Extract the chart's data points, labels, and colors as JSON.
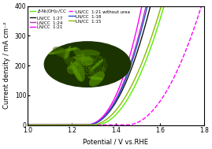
{
  "xlabel": "Potential / V vs.RHE",
  "ylabel": "Current density / mA cm⁻²",
  "xlim": [
    1.0,
    1.8
  ],
  "ylim": [
    0,
    400
  ],
  "xticks": [
    1.0,
    1.2,
    1.4,
    1.6,
    1.8
  ],
  "yticks": [
    0,
    100,
    200,
    300,
    400
  ],
  "curves": [
    {
      "label": "β-Ni(OH)₂/CC",
      "color": "#55ee00",
      "linestyle": "-",
      "onset": 1.31,
      "A": 4200,
      "n": 2.0
    },
    {
      "label": "LN/CC  1:27",
      "color": "#111111",
      "linestyle": "-",
      "onset": 1.27,
      "A": 5500,
      "n": 2.1
    },
    {
      "label": "LN/CC  1:24",
      "color": "#bb33bb",
      "linestyle": "-",
      "onset": 1.265,
      "A": 7000,
      "n": 2.2
    },
    {
      "label": "LN/CC  1:21",
      "color": "#ff00ff",
      "linestyle": "-",
      "onset": 1.26,
      "A": 9000,
      "n": 2.3
    },
    {
      "label": "LN/CC  1:21 without urea",
      "color": "#ff00ff",
      "linestyle": "--",
      "onset": 1.45,
      "A": 3500,
      "n": 2.0
    },
    {
      "label": "LN/CC  1:18",
      "color": "#2255cc",
      "linestyle": "-",
      "onset": 1.27,
      "A": 6500,
      "n": 2.15
    },
    {
      "label": "LN/CC  1:15",
      "color": "#88bb00",
      "linestyle": "-",
      "onset": 1.29,
      "A": 4000,
      "n": 2.0
    }
  ],
  "background_color": "#ffffff"
}
